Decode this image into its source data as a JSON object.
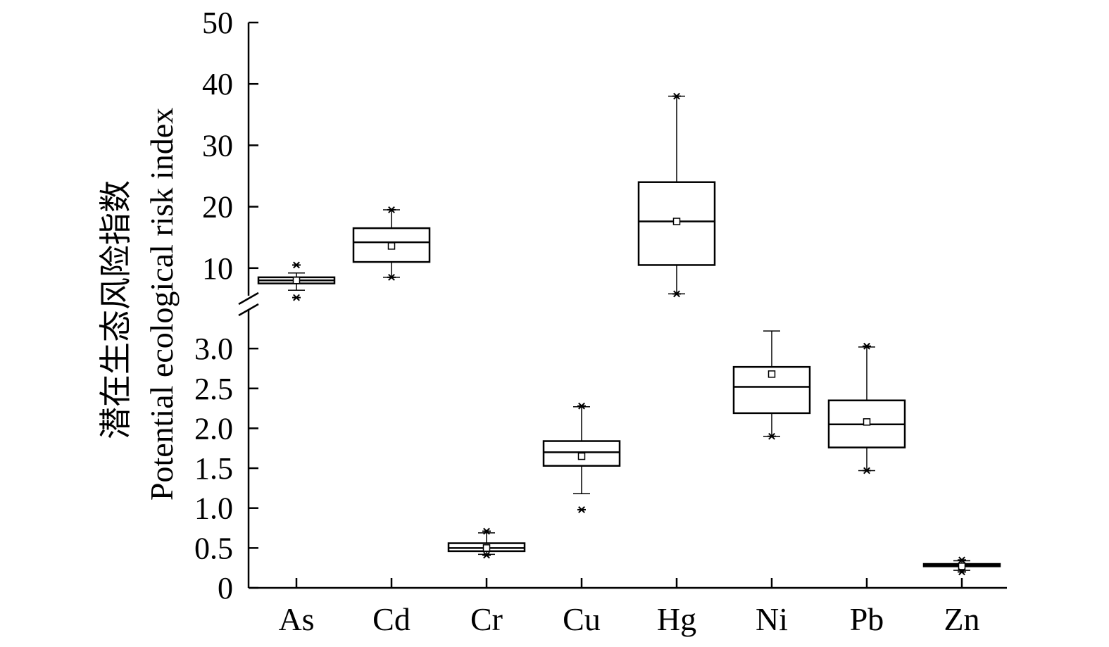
{
  "chart_data": {
    "type": "box",
    "ylabel_cn": "潜在生态风险指数",
    "ylabel_en": "Potential ecological risk index",
    "categories": [
      "As",
      "Cd",
      "Cr",
      "Cu",
      "Hg",
      "Ni",
      "Pb",
      "Zn"
    ],
    "axis_break": true,
    "lower_segment": {
      "ylim": [
        0,
        3.5
      ],
      "ticks": [
        0,
        0.5,
        1.0,
        1.5,
        2.0,
        2.5,
        3.0
      ],
      "tick_labels": [
        "0",
        "0.5",
        "1.0",
        "1.5",
        "2.0",
        "2.5",
        "3.0"
      ]
    },
    "upper_segment": {
      "ylim": [
        5,
        50
      ],
      "ticks": [
        10,
        20,
        30,
        40,
        50
      ],
      "tick_labels": [
        "10",
        "20",
        "30",
        "40",
        "50"
      ]
    },
    "boxes": [
      {
        "category": "As",
        "segment": "upper",
        "whisker_low": 6.4,
        "q1": 7.5,
        "median": 8.0,
        "q3": 8.5,
        "whisker_high": 9.2,
        "mean": 8.0,
        "outliers": [
          5.2,
          10.5
        ]
      },
      {
        "category": "Cd",
        "segment": "upper",
        "whisker_low": 8.5,
        "q1": 11.0,
        "median": 14.2,
        "q3": 16.5,
        "whisker_high": 19.5,
        "mean": 13.6,
        "outliers": [
          8.5,
          19.5
        ]
      },
      {
        "category": "Cr",
        "segment": "lower",
        "whisker_low": 0.42,
        "q1": 0.46,
        "median": 0.5,
        "q3": 0.56,
        "whisker_high": 0.69,
        "mean": 0.5,
        "outliers": [
          0.41,
          0.71
        ]
      },
      {
        "category": "Cu",
        "segment": "lower",
        "whisker_low": 1.18,
        "q1": 1.53,
        "median": 1.7,
        "q3": 1.84,
        "whisker_high": 2.27,
        "mean": 1.65,
        "outliers": [
          0.98,
          2.28
        ]
      },
      {
        "category": "Hg",
        "segment": "upper",
        "whisker_low": 5.8,
        "q1": 10.5,
        "median": 17.6,
        "q3": 24.0,
        "whisker_high": 38.0,
        "mean": 17.6,
        "outliers": [
          5.8,
          38.0
        ]
      },
      {
        "category": "Ni",
        "segment": "lower",
        "whisker_low": 1.9,
        "q1": 2.19,
        "median": 2.52,
        "q3": 2.77,
        "whisker_high": 3.22,
        "mean": 2.68,
        "outliers": [
          1.9
        ]
      },
      {
        "category": "Pb",
        "segment": "lower",
        "whisker_low": 1.47,
        "q1": 1.76,
        "median": 2.05,
        "q3": 2.35,
        "whisker_high": 3.02,
        "mean": 2.08,
        "outliers": [
          1.47,
          3.03
        ]
      },
      {
        "category": "Zn",
        "segment": "lower",
        "whisker_low": 0.22,
        "q1": 0.27,
        "median": 0.28,
        "q3": 0.3,
        "whisker_high": 0.34,
        "mean": 0.27,
        "outliers": [
          0.2,
          0.35
        ]
      }
    ]
  }
}
